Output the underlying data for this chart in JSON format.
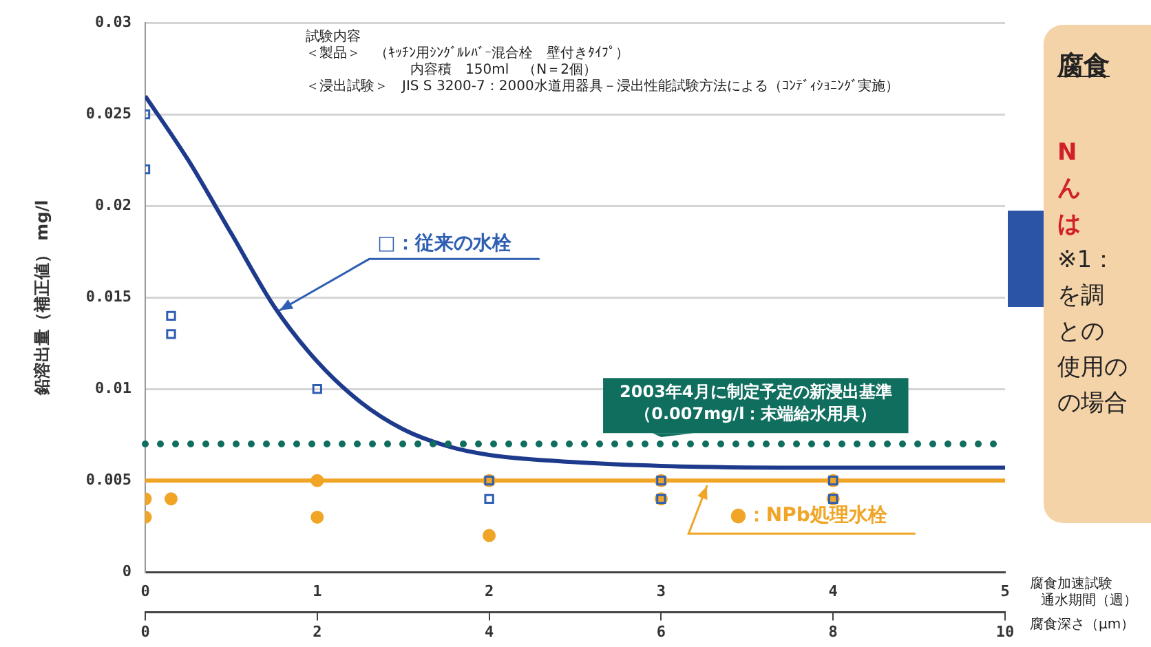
{
  "chart_data": {
    "type": "scatter",
    "ylabel": "鉛溶出量（補正値） mg/l",
    "xlabel": "腐食加速試験通水期間（週）",
    "x2label": "腐食深さ（μm）",
    "xlim": [
      0,
      5
    ],
    "xticks": [
      0,
      1,
      2,
      3,
      4,
      5
    ],
    "x2lim": [
      0,
      10
    ],
    "x2ticks": [
      0,
      2,
      4,
      6,
      8,
      10
    ],
    "ylim": [
      0,
      0.03
    ],
    "yticks": [
      0,
      0.005,
      0.01,
      0.015,
      0.02,
      0.025,
      0.03
    ],
    "grid": "y",
    "legend": false,
    "series": [
      {
        "name": "□：従来の水栓",
        "marker": "square",
        "color": "#2f5fb3",
        "x": [
          0,
          0,
          0.15,
          0.15,
          1,
          2,
          2,
          3,
          3,
          4,
          4
        ],
        "values": [
          0.025,
          0.022,
          0.014,
          0.013,
          0.01,
          0.005,
          0.004,
          0.005,
          0.004,
          0.005,
          0.004
        ]
      },
      {
        "name": "●：NPb処理水栓",
        "marker": "circle",
        "color": "#f0a526",
        "x": [
          0,
          0,
          0.15,
          1,
          1,
          2,
          2,
          3,
          3,
          4,
          4
        ],
        "values": [
          0.004,
          0.003,
          0.004,
          0.005,
          0.003,
          0.005,
          0.002,
          0.005,
          0.004,
          0.005,
          0.004
        ]
      },
      {
        "type": "line",
        "marker": "none",
        "color": "#1e3a8c",
        "x": [
          0,
          0.25,
          0.5,
          0.75,
          1,
          1.25,
          1.5,
          1.75,
          2,
          2.5,
          3,
          4,
          5
        ],
        "values": [
          0.026,
          0.0225,
          0.0185,
          0.0145,
          0.0115,
          0.0093,
          0.0078,
          0.0069,
          0.0064,
          0.006,
          0.0058,
          0.0057,
          0.0057
        ]
      },
      {
        "type": "line",
        "marker": "none",
        "color": "#f0a526",
        "x": [
          0,
          5
        ],
        "values": [
          0.005,
          0.005
        ]
      }
    ],
    "ref_lines": [
      {
        "axis": "y",
        "value": 0.007,
        "label": "2003年4月に制定予定の新浸出基準（0.007mg/l：末端給水用具）",
        "color": "#0f6e5e",
        "line_style": "dotted"
      }
    ],
    "annotations": [
      "試験内容",
      "＜製品＞　（ｷｯﾁﾝ用ｼﾝｸﾞﾙﾚﾊﾞｰ混合栓　壁付きﾀｲﾌﾟ）",
      "内容積　150ml　（N＝2個）",
      "＜浸出試験＞　JIS S 3200-7：2000水道用器具－浸出性能試験方法による（ｺﾝﾃﾞｨｼｮﾆﾝｸﾞ実施）",
      "腐食",
      "N",
      "ん",
      "は",
      "※1：",
      "を調",
      "との",
      "使用の",
      "の場合"
    ]
  }
}
